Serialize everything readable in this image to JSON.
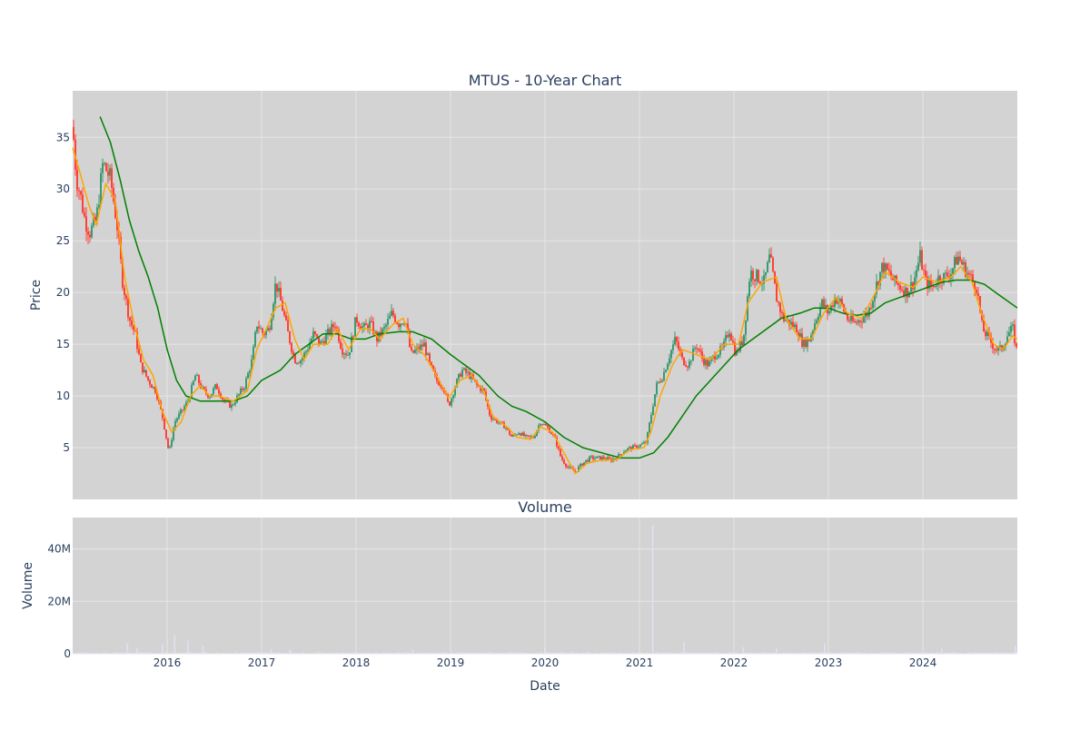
{
  "chart_data": [
    {
      "type": "candlestick",
      "title": "MTUS - 10-Year Chart",
      "ylabel": "Price",
      "ylim": [
        0,
        39.5
      ],
      "yticks": [
        5,
        10,
        15,
        20,
        25,
        30,
        35
      ],
      "xlim": [
        2015.0,
        2025.0
      ],
      "xticks": [
        2016,
        2017,
        2018,
        2019,
        2020,
        2021,
        2022,
        2023,
        2024
      ],
      "grid": true,
      "colors": {
        "up": "#3d9970",
        "down": "#ff4136",
        "ma_short": "#ffa500",
        "ma_long": "#008000",
        "plot_bg": "#d3d3d3",
        "grid": "#e6e6e6"
      },
      "price_path": [
        [
          2015.0,
          36.0
        ],
        [
          2015.04,
          31.0
        ],
        [
          2015.08,
          29.5
        ],
        [
          2015.13,
          27.0
        ],
        [
          2015.18,
          25.8
        ],
        [
          2015.25,
          27.0
        ],
        [
          2015.32,
          32.5
        ],
        [
          2015.4,
          31.0
        ],
        [
          2015.47,
          26.5
        ],
        [
          2015.53,
          21.0
        ],
        [
          2015.6,
          17.5
        ],
        [
          2015.66,
          16.0
        ],
        [
          2015.72,
          13.0
        ],
        [
          2015.8,
          11.5
        ],
        [
          2015.88,
          10.5
        ],
        [
          2015.95,
          8.0
        ],
        [
          2016.02,
          4.5
        ],
        [
          2016.08,
          7.5
        ],
        [
          2016.15,
          8.5
        ],
        [
          2016.22,
          9.5
        ],
        [
          2016.3,
          12.0
        ],
        [
          2016.38,
          10.5
        ],
        [
          2016.45,
          10.0
        ],
        [
          2016.52,
          11.0
        ],
        [
          2016.6,
          9.5
        ],
        [
          2016.68,
          9.0
        ],
        [
          2016.75,
          10.0
        ],
        [
          2016.82,
          11.0
        ],
        [
          2016.9,
          13.5
        ],
        [
          2016.95,
          17.0
        ],
        [
          2017.02,
          16.0
        ],
        [
          2017.08,
          16.5
        ],
        [
          2017.15,
          21.0
        ],
        [
          2017.22,
          18.5
        ],
        [
          2017.28,
          16.0
        ],
        [
          2017.35,
          13.5
        ],
        [
          2017.42,
          13.5
        ],
        [
          2017.48,
          14.5
        ],
        [
          2017.55,
          16.0
        ],
        [
          2017.62,
          15.0
        ],
        [
          2017.7,
          16.0
        ],
        [
          2017.78,
          17.0
        ],
        [
          2017.85,
          14.5
        ],
        [
          2017.92,
          14.0
        ],
        [
          2018.0,
          17.5
        ],
        [
          2018.08,
          16.5
        ],
        [
          2018.15,
          17.0
        ],
        [
          2018.22,
          15.5
        ],
        [
          2018.3,
          16.5
        ],
        [
          2018.38,
          18.0
        ],
        [
          2018.45,
          17.0
        ],
        [
          2018.52,
          17.5
        ],
        [
          2018.58,
          14.0
        ],
        [
          2018.65,
          14.5
        ],
        [
          2018.72,
          15.0
        ],
        [
          2018.78,
          13.0
        ],
        [
          2018.85,
          11.5
        ],
        [
          2018.92,
          11.0
        ],
        [
          2018.98,
          9.0
        ],
        [
          2019.05,
          11.0
        ],
        [
          2019.12,
          12.5
        ],
        [
          2019.2,
          12.0
        ],
        [
          2019.28,
          11.0
        ],
        [
          2019.35,
          10.5
        ],
        [
          2019.42,
          8.0
        ],
        [
          2019.5,
          7.5
        ],
        [
          2019.58,
          7.0
        ],
        [
          2019.65,
          6.0
        ],
        [
          2019.72,
          6.5
        ],
        [
          2019.8,
          6.0
        ],
        [
          2019.88,
          6.0
        ],
        [
          2019.95,
          7.5
        ],
        [
          2020.02,
          7.0
        ],
        [
          2020.1,
          6.0
        ],
        [
          2020.17,
          4.0
        ],
        [
          2020.25,
          3.0
        ],
        [
          2020.32,
          2.7
        ],
        [
          2020.4,
          3.5
        ],
        [
          2020.48,
          4.0
        ],
        [
          2020.55,
          4.0
        ],
        [
          2020.62,
          4.0
        ],
        [
          2020.7,
          3.8
        ],
        [
          2020.78,
          4.2
        ],
        [
          2020.85,
          4.8
        ],
        [
          2020.92,
          5.0
        ],
        [
          2021.0,
          5.2
        ],
        [
          2021.07,
          5.5
        ],
        [
          2021.13,
          8.5
        ],
        [
          2021.18,
          11.0
        ],
        [
          2021.25,
          12.0
        ],
        [
          2021.32,
          14.0
        ],
        [
          2021.38,
          15.5
        ],
        [
          2021.45,
          13.5
        ],
        [
          2021.52,
          13.0
        ],
        [
          2021.6,
          15.0
        ],
        [
          2021.67,
          13.5
        ],
        [
          2021.73,
          13.0
        ],
        [
          2021.8,
          14.0
        ],
        [
          2021.88,
          14.5
        ],
        [
          2021.95,
          16.5
        ],
        [
          2022.02,
          14.0
        ],
        [
          2022.1,
          15.5
        ],
        [
          2022.17,
          22.0
        ],
        [
          2022.25,
          21.5
        ],
        [
          2022.32,
          21.0
        ],
        [
          2022.38,
          23.5
        ],
        [
          2022.45,
          19.5
        ],
        [
          2022.52,
          17.5
        ],
        [
          2022.6,
          17.0
        ],
        [
          2022.67,
          16.5
        ],
        [
          2022.73,
          15.0
        ],
        [
          2022.8,
          15.5
        ],
        [
          2022.87,
          17.5
        ],
        [
          2022.93,
          19.0
        ],
        [
          2023.0,
          18.0
        ],
        [
          2023.07,
          19.5
        ],
        [
          2023.13,
          19.0
        ],
        [
          2023.2,
          17.5
        ],
        [
          2023.28,
          17.0
        ],
        [
          2023.35,
          17.5
        ],
        [
          2023.42,
          18.0
        ],
        [
          2023.5,
          20.5
        ],
        [
          2023.57,
          22.5
        ],
        [
          2023.63,
          22.0
        ],
        [
          2023.7,
          21.0
        ],
        [
          2023.77,
          20.5
        ],
        [
          2023.83,
          20.0
        ],
        [
          2023.9,
          21.0
        ],
        [
          2023.97,
          23.5
        ],
        [
          2024.03,
          21.0
        ],
        [
          2024.1,
          20.5
        ],
        [
          2024.17,
          21.5
        ],
        [
          2024.23,
          21.5
        ],
        [
          2024.3,
          22.0
        ],
        [
          2024.37,
          23.5
        ],
        [
          2024.43,
          22.5
        ],
        [
          2024.5,
          21.5
        ],
        [
          2024.57,
          20.5
        ],
        [
          2024.63,
          16.5
        ],
        [
          2024.7,
          15.5
        ],
        [
          2024.77,
          14.5
        ],
        [
          2024.83,
          14.5
        ],
        [
          2024.9,
          16.0
        ],
        [
          2024.95,
          16.5
        ],
        [
          2025.0,
          14.0
        ]
      ],
      "ma_short": [
        [
          2015.0,
          34.0
        ],
        [
          2015.08,
          31.5
        ],
        [
          2015.17,
          28.5
        ],
        [
          2015.25,
          26.5
        ],
        [
          2015.35,
          30.5
        ],
        [
          2015.45,
          29.0
        ],
        [
          2015.55,
          21.5
        ],
        [
          2015.65,
          17.0
        ],
        [
          2015.75,
          13.5
        ],
        [
          2015.85,
          12.0
        ],
        [
          2015.95,
          8.5
        ],
        [
          2016.05,
          6.5
        ],
        [
          2016.15,
          7.5
        ],
        [
          2016.25,
          10.0
        ],
        [
          2016.35,
          11.0
        ],
        [
          2016.45,
          10.0
        ],
        [
          2016.55,
          10.0
        ],
        [
          2016.7,
          9.5
        ],
        [
          2016.85,
          10.5
        ],
        [
          2016.95,
          14.5
        ],
        [
          2017.05,
          16.5
        ],
        [
          2017.15,
          18.5
        ],
        [
          2017.25,
          19.0
        ],
        [
          2017.35,
          15.5
        ],
        [
          2017.45,
          13.5
        ],
        [
          2017.55,
          15.0
        ],
        [
          2017.7,
          15.0
        ],
        [
          2017.8,
          16.5
        ],
        [
          2017.92,
          14.5
        ],
        [
          2018.05,
          16.5
        ],
        [
          2018.15,
          16.5
        ],
        [
          2018.25,
          15.5
        ],
        [
          2018.4,
          17.0
        ],
        [
          2018.5,
          17.5
        ],
        [
          2018.6,
          15.0
        ],
        [
          2018.72,
          14.0
        ],
        [
          2018.85,
          12.0
        ],
        [
          2018.98,
          9.8
        ],
        [
          2019.1,
          11.5
        ],
        [
          2019.22,
          12.0
        ],
        [
          2019.35,
          10.5
        ],
        [
          2019.45,
          8.0
        ],
        [
          2019.6,
          7.0
        ],
        [
          2019.7,
          6.0
        ],
        [
          2019.85,
          5.8
        ],
        [
          2019.95,
          7.0
        ],
        [
          2020.08,
          6.5
        ],
        [
          2020.2,
          4.5
        ],
        [
          2020.32,
          2.5
        ],
        [
          2020.45,
          3.5
        ],
        [
          2020.6,
          3.8
        ],
        [
          2020.75,
          3.8
        ],
        [
          2020.9,
          4.8
        ],
        [
          2021.05,
          5.0
        ],
        [
          2021.12,
          6.5
        ],
        [
          2021.22,
          10.0
        ],
        [
          2021.35,
          13.0
        ],
        [
          2021.45,
          14.5
        ],
        [
          2021.6,
          14.0
        ],
        [
          2021.75,
          13.5
        ],
        [
          2021.9,
          15.0
        ],
        [
          2022.05,
          15.0
        ],
        [
          2022.15,
          19.0
        ],
        [
          2022.3,
          21.0
        ],
        [
          2022.45,
          21.5
        ],
        [
          2022.55,
          17.5
        ],
        [
          2022.7,
          15.5
        ],
        [
          2022.82,
          15.5
        ],
        [
          2022.95,
          18.0
        ],
        [
          2023.08,
          19.5
        ],
        [
          2023.2,
          18.0
        ],
        [
          2023.35,
          17.5
        ],
        [
          2023.5,
          20.0
        ],
        [
          2023.6,
          22.0
        ],
        [
          2023.75,
          21.0
        ],
        [
          2023.9,
          20.5
        ],
        [
          2024.0,
          21.5
        ],
        [
          2024.15,
          21.0
        ],
        [
          2024.3,
          21.5
        ],
        [
          2024.4,
          22.5
        ],
        [
          2024.52,
          21.0
        ],
        [
          2024.62,
          18.0
        ],
        [
          2024.75,
          15.0
        ],
        [
          2024.85,
          14.5
        ],
        [
          2024.95,
          15.8
        ],
        [
          2025.0,
          15.5
        ]
      ],
      "ma_long": [
        [
          2015.29,
          37.0
        ],
        [
          2015.4,
          34.5
        ],
        [
          2015.5,
          31.0
        ],
        [
          2015.6,
          27.0
        ],
        [
          2015.7,
          24.0
        ],
        [
          2015.8,
          21.5
        ],
        [
          2015.9,
          18.5
        ],
        [
          2016.0,
          14.5
        ],
        [
          2016.1,
          11.5
        ],
        [
          2016.2,
          10.0
        ],
        [
          2016.35,
          9.5
        ],
        [
          2016.5,
          9.5
        ],
        [
          2016.7,
          9.5
        ],
        [
          2016.85,
          10.0
        ],
        [
          2017.0,
          11.5
        ],
        [
          2017.2,
          12.5
        ],
        [
          2017.35,
          14.0
        ],
        [
          2017.5,
          15.0
        ],
        [
          2017.65,
          16.0
        ],
        [
          2017.8,
          16.0
        ],
        [
          2017.95,
          15.5
        ],
        [
          2018.1,
          15.5
        ],
        [
          2018.25,
          16.0
        ],
        [
          2018.45,
          16.2
        ],
        [
          2018.6,
          16.2
        ],
        [
          2018.8,
          15.5
        ],
        [
          2019.0,
          14.0
        ],
        [
          2019.15,
          13.0
        ],
        [
          2019.3,
          12.0
        ],
        [
          2019.5,
          10.0
        ],
        [
          2019.65,
          9.0
        ],
        [
          2019.8,
          8.5
        ],
        [
          2020.0,
          7.5
        ],
        [
          2020.2,
          6.0
        ],
        [
          2020.4,
          5.0
        ],
        [
          2020.6,
          4.5
        ],
        [
          2020.8,
          4.0
        ],
        [
          2021.0,
          4.0
        ],
        [
          2021.15,
          4.5
        ],
        [
          2021.3,
          6.0
        ],
        [
          2021.45,
          8.0
        ],
        [
          2021.6,
          10.0
        ],
        [
          2021.75,
          11.5
        ],
        [
          2021.9,
          13.0
        ],
        [
          2022.05,
          14.5
        ],
        [
          2022.2,
          15.5
        ],
        [
          2022.35,
          16.5
        ],
        [
          2022.5,
          17.5
        ],
        [
          2022.7,
          18.0
        ],
        [
          2022.85,
          18.5
        ],
        [
          2023.0,
          18.5
        ],
        [
          2023.15,
          18.0
        ],
        [
          2023.3,
          17.8
        ],
        [
          2023.45,
          18.0
        ],
        [
          2023.6,
          19.0
        ],
        [
          2023.75,
          19.5
        ],
        [
          2023.9,
          20.0
        ],
        [
          2024.05,
          20.5
        ],
        [
          2024.2,
          21.0
        ],
        [
          2024.35,
          21.2
        ],
        [
          2024.5,
          21.2
        ],
        [
          2024.65,
          20.8
        ],
        [
          2024.8,
          19.8
        ],
        [
          2025.0,
          18.5
        ]
      ]
    },
    {
      "type": "bar",
      "title": "Volume",
      "xlabel": "Date",
      "ylabel": "Volume",
      "ylim": [
        0,
        52000000
      ],
      "yticks": [
        0,
        20000000,
        40000000
      ],
      "ytick_labels": [
        "0",
        "20M",
        "40M"
      ],
      "xlim": [
        2015.0,
        2025.0
      ],
      "xticks": [
        2016,
        2017,
        2018,
        2019,
        2020,
        2021,
        2022,
        2023,
        2024
      ],
      "grid": true,
      "colors": {
        "bar": "#e0e0f5",
        "plot_bg": "#d3d3d3",
        "grid": "#e6e6e6"
      },
      "spikes": [
        [
          2015.58,
          4000000
        ],
        [
          2015.68,
          2000000
        ],
        [
          2015.95,
          3500000
        ],
        [
          2016.08,
          7000000
        ],
        [
          2016.22,
          5000000
        ],
        [
          2016.38,
          3000000
        ],
        [
          2017.1,
          1800000
        ],
        [
          2017.3,
          1500000
        ],
        [
          2018.6,
          1500000
        ],
        [
          2020.0,
          2500000
        ],
        [
          2021.14,
          49000000
        ],
        [
          2021.47,
          4500000
        ],
        [
          2022.1,
          2500000
        ],
        [
          2022.45,
          2000000
        ],
        [
          2022.96,
          4000000
        ],
        [
          2024.2,
          2000000
        ],
        [
          2024.98,
          3000000
        ]
      ]
    }
  ]
}
